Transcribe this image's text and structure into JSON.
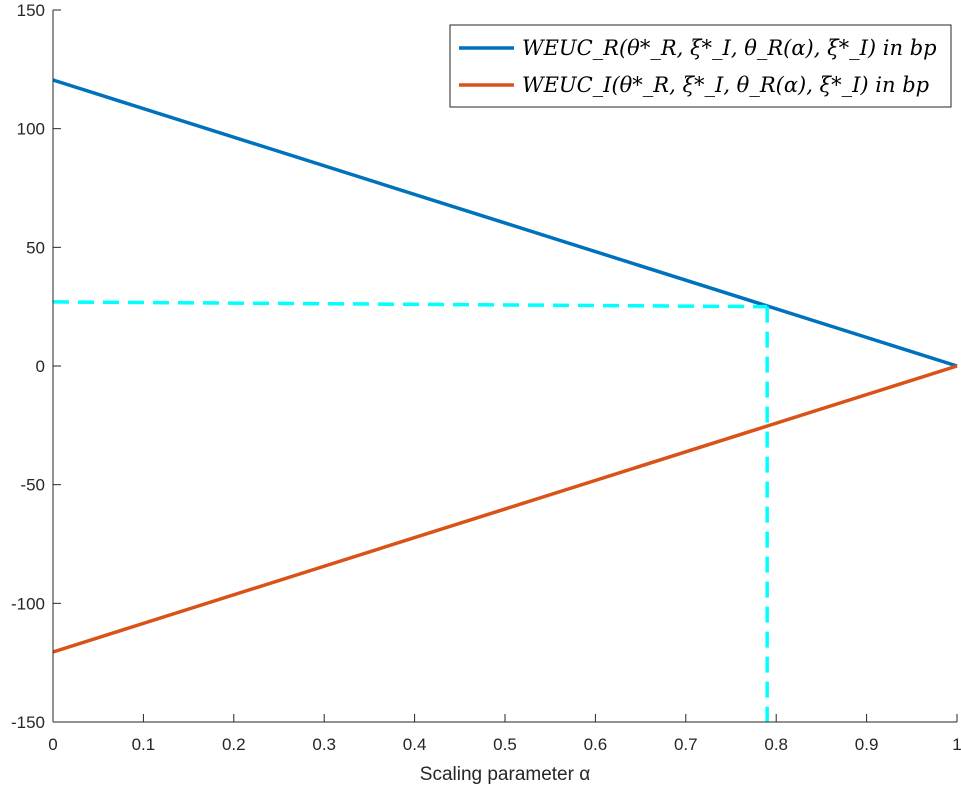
{
  "chart_data": {
    "type": "line",
    "xlabel": "Scaling parameter α",
    "ylabel": "",
    "xlim": [
      0,
      1
    ],
    "ylim": [
      -150,
      150
    ],
    "xticks": [
      "0",
      "0.1",
      "0.2",
      "0.3",
      "0.4",
      "0.5",
      "0.6",
      "0.7",
      "0.8",
      "0.9",
      "1"
    ],
    "xtick_values": [
      0,
      0.1,
      0.2,
      0.3,
      0.4,
      0.5,
      0.6,
      0.7,
      0.8,
      0.9,
      1
    ],
    "yticks": [
      "150",
      "100",
      "50",
      "0",
      "-50",
      "-100",
      "-150"
    ],
    "ytick_values": [
      150,
      100,
      50,
      0,
      -50,
      -100,
      -150
    ],
    "grid": false,
    "legend_position": "top-right",
    "series": [
      {
        "name": "WEUC_R(θ*_R, ξ*_I, θ_R(α), ξ*_I) in bp",
        "color": "#0072BD",
        "style": "solid",
        "x": [
          0,
          1
        ],
        "y": [
          120.5,
          0
        ]
      },
      {
        "name": "WEUC_I(θ*_R, ξ*_I, θ_R(α), ξ*_I) in bp",
        "color": "#D95319",
        "style": "solid",
        "x": [
          0,
          1
        ],
        "y": [
          -120.5,
          0
        ]
      },
      {
        "name": "",
        "color": "#00FFFF",
        "style": "dashed",
        "x": [
          0,
          0.79
        ],
        "y": [
          27,
          25
        ]
      },
      {
        "name": "",
        "color": "#00FFFF",
        "style": "dashed",
        "x": [
          0.79,
          0.79
        ],
        "y": [
          25,
          -150
        ]
      }
    ]
  }
}
